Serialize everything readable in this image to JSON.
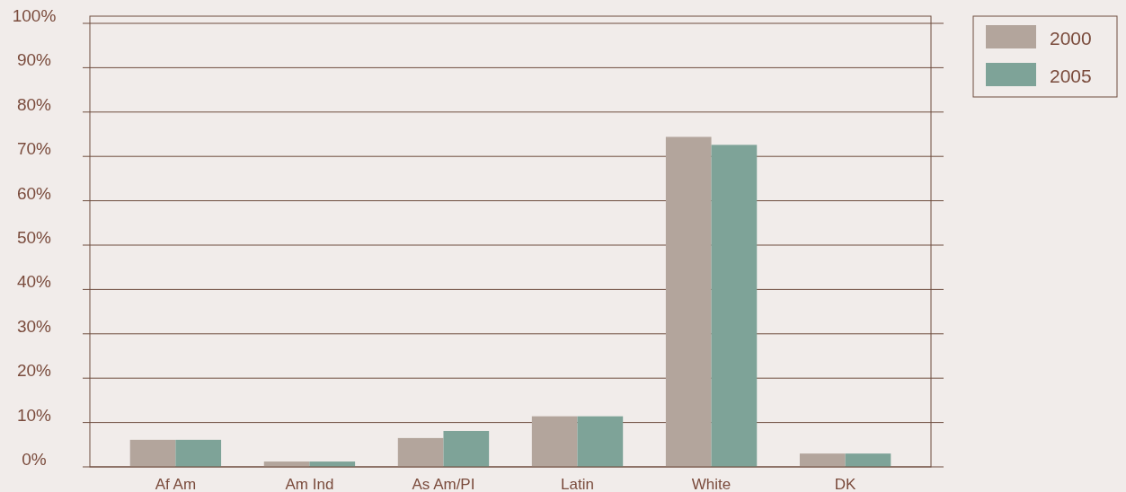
{
  "chart_data": {
    "type": "bar",
    "categories": [
      "Af Am",
      "Am Ind",
      "As Am/PI",
      "Latin",
      "White",
      "DK"
    ],
    "series": [
      {
        "name": "2000",
        "color": "#b3a59c",
        "values": [
          6.1,
          1.2,
          6.5,
          11.4,
          74.4,
          3.0
        ]
      },
      {
        "name": "2005",
        "color": "#7ea398",
        "values": [
          6.1,
          1.2,
          8.1,
          11.4,
          72.6,
          3.0
        ]
      }
    ],
    "ylim": [
      0,
      100
    ],
    "yticks": [
      {
        "value": 0,
        "label": "0%"
      },
      {
        "value": 10,
        "label": "10%"
      },
      {
        "value": 20,
        "label": "20%"
      },
      {
        "value": 30,
        "label": "30%"
      },
      {
        "value": 40,
        "label": "40%"
      },
      {
        "value": 50,
        "label": "50%"
      },
      {
        "value": 60,
        "label": "60%"
      },
      {
        "value": 70,
        "label": "70%"
      },
      {
        "value": 80,
        "label": "80%"
      },
      {
        "value": 90,
        "label": "90%"
      },
      {
        "value": 100,
        "label": "100%"
      }
    ],
    "grid": "y",
    "legend": "top right"
  }
}
